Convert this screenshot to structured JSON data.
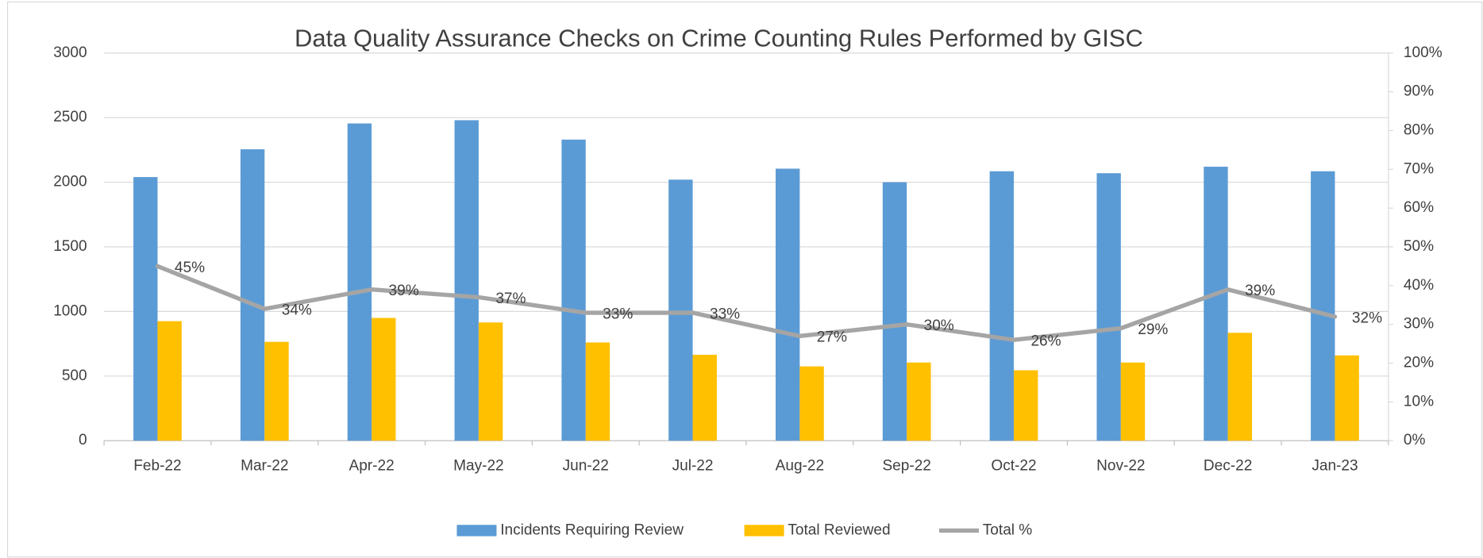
{
  "chart_data": {
    "type": "bar_line",
    "title": "Data Quality Assurance Checks on Crime Counting Rules Performed by GISC",
    "categories": [
      "Feb-22",
      "Mar-22",
      "Apr-22",
      "May-22",
      "Jun-22",
      "Jul-22",
      "Aug-22",
      "Sep-22",
      "Oct-22",
      "Nov-22",
      "Dec-22",
      "Jan-23"
    ],
    "series": [
      {
        "name": "Incidents Requiring Review",
        "color": "#5b9bd5",
        "type": "bar",
        "values": [
          2040,
          2255,
          2455,
          2480,
          2330,
          2020,
          2105,
          2000,
          2085,
          2070,
          2120,
          2085
        ]
      },
      {
        "name": "Total Reviewed",
        "color": "#ffc000",
        "type": "bar",
        "values": [
          925,
          765,
          950,
          915,
          760,
          665,
          575,
          605,
          545,
          605,
          835,
          660
        ]
      },
      {
        "name": "Total %",
        "color": "#a5a5a5",
        "type": "line",
        "axis": "y2",
        "values": [
          45,
          34,
          39,
          37,
          33,
          33,
          27,
          30,
          26,
          29,
          39,
          32
        ],
        "value_labels": [
          "45%",
          "34%",
          "39%",
          "37%",
          "33%",
          "33%",
          "27%",
          "30%",
          "26%",
          "29%",
          "39%",
          "32%"
        ]
      }
    ],
    "ylim": [
      0,
      3000
    ],
    "yticks": [
      0,
      500,
      1000,
      1500,
      2000,
      2500,
      3000
    ],
    "y2lim": [
      0,
      100
    ],
    "y2ticks": [
      {
        "value": 0,
        "label": "0%"
      },
      {
        "value": 10,
        "label": "10%"
      },
      {
        "value": 20,
        "label": "20%"
      },
      {
        "value": 30,
        "label": "30%"
      },
      {
        "value": 40,
        "label": "40%"
      },
      {
        "value": 50,
        "label": "50%"
      },
      {
        "value": 60,
        "label": "60%"
      },
      {
        "value": 70,
        "label": "70%"
      },
      {
        "value": 80,
        "label": "80%"
      },
      {
        "value": 90,
        "label": "90%"
      },
      {
        "value": 100,
        "label": "100%"
      }
    ],
    "grid": true,
    "legend": "bottom"
  }
}
